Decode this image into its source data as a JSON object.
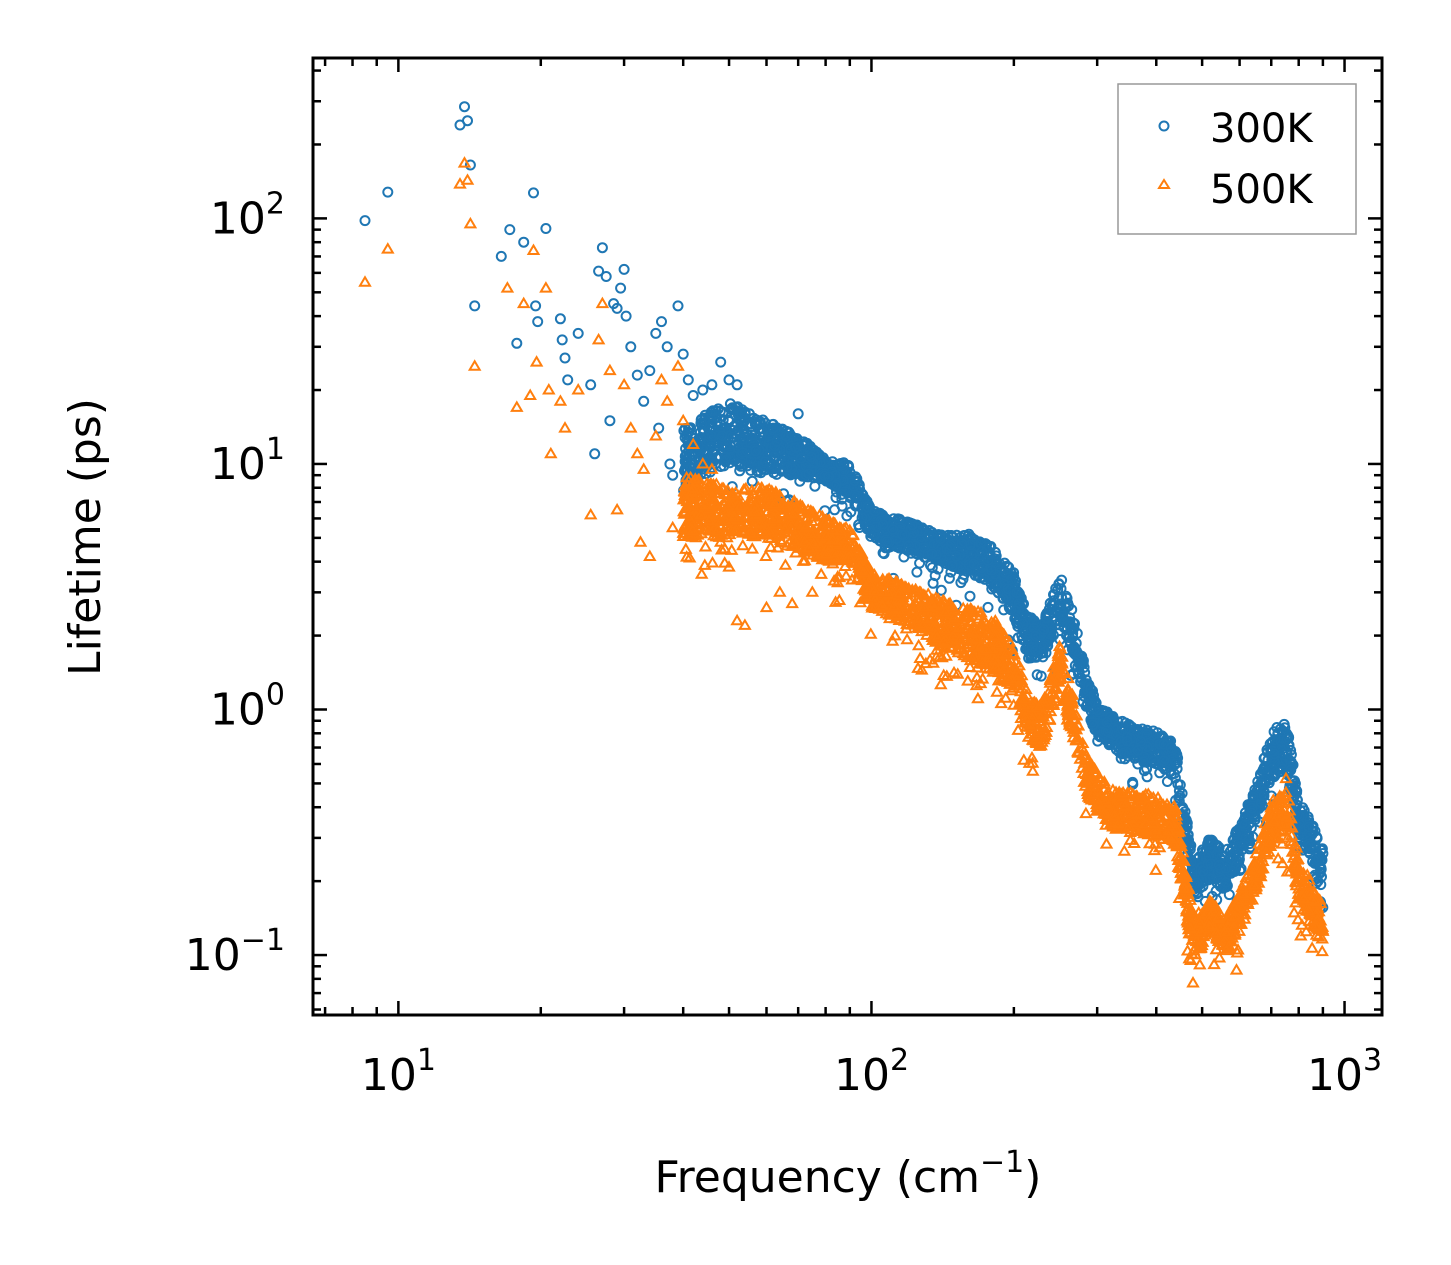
{
  "chart_data": {
    "type": "scatter",
    "title": "",
    "xlabel": "Frequency (cm",
    "xlabel_sup": "−1",
    "xlabel_close": ")",
    "ylabel": "Lifetime (ps)",
    "xscale": "log",
    "yscale": "log",
    "xlim": [
      6.6,
      1200
    ],
    "ylim": [
      0.057,
      450
    ],
    "x_ticks": [
      {
        "value": 10,
        "base": "10",
        "exp": "1"
      },
      {
        "value": 100,
        "base": "10",
        "exp": "2"
      },
      {
        "value": 1000,
        "base": "10",
        "exp": "3"
      }
    ],
    "y_ticks": [
      {
        "value": 0.1,
        "base": "10",
        "exp": "−1"
      },
      {
        "value": 1,
        "base": "10",
        "exp": "0"
      },
      {
        "value": 10,
        "base": "10",
        "exp": "1"
      },
      {
        "value": 100,
        "base": "10",
        "exp": "2"
      }
    ],
    "legend_position": "top-right",
    "series": [
      {
        "name": "300K",
        "marker": "circle",
        "color": "#1f77b4",
        "points": [
          [
            8.5,
            98
          ],
          [
            9.5,
            128
          ],
          [
            13.5,
            240
          ],
          [
            13.8,
            285
          ],
          [
            14.0,
            250
          ],
          [
            14.2,
            165
          ],
          [
            14.5,
            44
          ],
          [
            16.5,
            70
          ],
          [
            17.2,
            90
          ],
          [
            17.8,
            31
          ],
          [
            18.4,
            80
          ],
          [
            19.3,
            127
          ],
          [
            19.5,
            44
          ],
          [
            19.7,
            38
          ],
          [
            20.5,
            91
          ],
          [
            22.0,
            39
          ],
          [
            22.2,
            32
          ],
          [
            22.5,
            27
          ],
          [
            22.8,
            22
          ],
          [
            24.0,
            34
          ],
          [
            25.5,
            21
          ],
          [
            26.0,
            11
          ],
          [
            26.5,
            61
          ],
          [
            27.0,
            76
          ],
          [
            27.5,
            58
          ],
          [
            28.0,
            15
          ],
          [
            28.5,
            45
          ],
          [
            29.0,
            43
          ],
          [
            29.5,
            52
          ],
          [
            30.0,
            62
          ],
          [
            30.3,
            40
          ],
          [
            31.0,
            30
          ],
          [
            32.0,
            23
          ],
          [
            33.0,
            18
          ],
          [
            34.0,
            24
          ],
          [
            35.0,
            34
          ],
          [
            35.5,
            14
          ],
          [
            36.0,
            38
          ],
          [
            37.0,
            30
          ],
          [
            37.5,
            10
          ],
          [
            38.0,
            9
          ],
          [
            39.0,
            44
          ],
          [
            40.0,
            28
          ],
          [
            41.0,
            22
          ],
          [
            42.0,
            19
          ],
          [
            44.0,
            20
          ],
          [
            46.0,
            21
          ],
          [
            48.0,
            26
          ],
          [
            50.0,
            22
          ],
          [
            52.0,
            21
          ],
          [
            54.0,
            16
          ],
          [
            56.0,
            8.5
          ],
          [
            58.0,
            5.2
          ],
          [
            62.0,
            14
          ],
          [
            66.0,
            13
          ],
          [
            70.0,
            16
          ]
        ],
        "bands": [
          [
            40,
            8,
            14
          ],
          [
            50,
            10,
            18
          ],
          [
            60,
            9,
            15
          ],
          [
            70,
            9,
            13
          ],
          [
            80,
            8.5,
            10.5
          ],
          [
            90,
            7.5,
            10
          ],
          [
            100,
            5,
            6.5
          ],
          [
            120,
            4.4,
            5.8
          ],
          [
            140,
            4,
            5.2
          ],
          [
            160,
            3.6,
            5.2
          ],
          [
            180,
            3.2,
            4.6
          ],
          [
            200,
            2.4,
            3.6
          ],
          [
            215,
            1.6,
            2.4
          ],
          [
            230,
            1.6,
            2.2
          ],
          [
            250,
            2.4,
            3.6
          ],
          [
            265,
            1.8,
            2.6
          ],
          [
            285,
            1.0,
            1.4
          ],
          [
            300,
            0.78,
            1.05
          ],
          [
            330,
            0.68,
            0.92
          ],
          [
            360,
            0.62,
            0.85
          ],
          [
            400,
            0.6,
            0.82
          ],
          [
            440,
            0.52,
            0.72
          ],
          [
            480,
            0.17,
            0.24
          ],
          [
            520,
            0.2,
            0.3
          ],
          [
            560,
            0.18,
            0.26
          ],
          [
            600,
            0.24,
            0.34
          ],
          [
            650,
            0.36,
            0.5
          ],
          [
            700,
            0.52,
            0.8
          ],
          [
            750,
            0.58,
            0.95
          ],
          [
            800,
            0.3,
            0.42
          ],
          [
            850,
            0.25,
            0.36
          ],
          [
            900,
            0.14,
            0.28
          ]
        ]
      },
      {
        "name": "500K",
        "marker": "triangle",
        "color": "#ff7f0e",
        "points": [
          [
            8.5,
            55
          ],
          [
            9.5,
            75
          ],
          [
            13.5,
            138
          ],
          [
            13.8,
            168
          ],
          [
            14.0,
            143
          ],
          [
            14.2,
            95
          ],
          [
            14.5,
            25
          ],
          [
            17.0,
            52
          ],
          [
            17.8,
            17
          ],
          [
            18.4,
            45
          ],
          [
            19.0,
            19
          ],
          [
            19.3,
            74
          ],
          [
            19.6,
            26
          ],
          [
            20.5,
            52
          ],
          [
            20.8,
            20
          ],
          [
            21.0,
            11
          ],
          [
            22.0,
            18
          ],
          [
            22.5,
            14
          ],
          [
            24.0,
            20
          ],
          [
            25.5,
            6.2
          ],
          [
            26.5,
            32
          ],
          [
            27.0,
            45
          ],
          [
            28.0,
            24
          ],
          [
            29.0,
            6.5
          ],
          [
            30.0,
            21
          ],
          [
            31.0,
            14
          ],
          [
            32.0,
            11
          ],
          [
            32.5,
            4.8
          ],
          [
            33.0,
            9.5
          ],
          [
            34.0,
            4.2
          ],
          [
            35.0,
            13
          ],
          [
            36.0,
            22
          ],
          [
            37.0,
            18
          ],
          [
            38.0,
            5.5
          ],
          [
            39.0,
            25
          ],
          [
            40.0,
            15
          ],
          [
            42.0,
            12
          ],
          [
            44.0,
            10
          ],
          [
            46.0,
            9.5
          ],
          [
            48.0,
            4.8
          ],
          [
            50.0,
            3.8
          ],
          [
            52.0,
            2.3
          ],
          [
            54.0,
            2.2
          ],
          [
            56.0,
            4.5
          ],
          [
            60.0,
            2.6
          ],
          [
            64.0,
            3.0
          ],
          [
            68.0,
            2.7
          ],
          [
            75.0,
            3.0
          ]
        ],
        "bands": [
          [
            40,
            5,
            9
          ],
          [
            50,
            5,
            8
          ],
          [
            60,
            5,
            8
          ],
          [
            70,
            4.5,
            7
          ],
          [
            80,
            4,
            6
          ],
          [
            90,
            4,
            5.5
          ],
          [
            100,
            2.6,
            3.6
          ],
          [
            120,
            2.2,
            3.2
          ],
          [
            140,
            1.8,
            2.8
          ],
          [
            160,
            1.6,
            2.6
          ],
          [
            180,
            1.4,
            2.4
          ],
          [
            200,
            1.2,
            1.8
          ],
          [
            215,
            0.75,
            1.1
          ],
          [
            230,
            0.7,
            1.05
          ],
          [
            250,
            1.2,
            1.9
          ],
          [
            265,
            0.8,
            1.2
          ],
          [
            285,
            0.45,
            0.65
          ],
          [
            300,
            0.38,
            0.55
          ],
          [
            330,
            0.32,
            0.46
          ],
          [
            360,
            0.32,
            0.46
          ],
          [
            400,
            0.3,
            0.45
          ],
          [
            440,
            0.28,
            0.4
          ],
          [
            480,
            0.09,
            0.14
          ],
          [
            520,
            0.13,
            0.17
          ],
          [
            560,
            0.1,
            0.14
          ],
          [
            600,
            0.13,
            0.18
          ],
          [
            650,
            0.18,
            0.26
          ],
          [
            700,
            0.28,
            0.42
          ],
          [
            750,
            0.32,
            0.55
          ],
          [
            800,
            0.17,
            0.24
          ],
          [
            850,
            0.14,
            0.2
          ],
          [
            900,
            0.1,
            0.16
          ]
        ]
      }
    ]
  }
}
